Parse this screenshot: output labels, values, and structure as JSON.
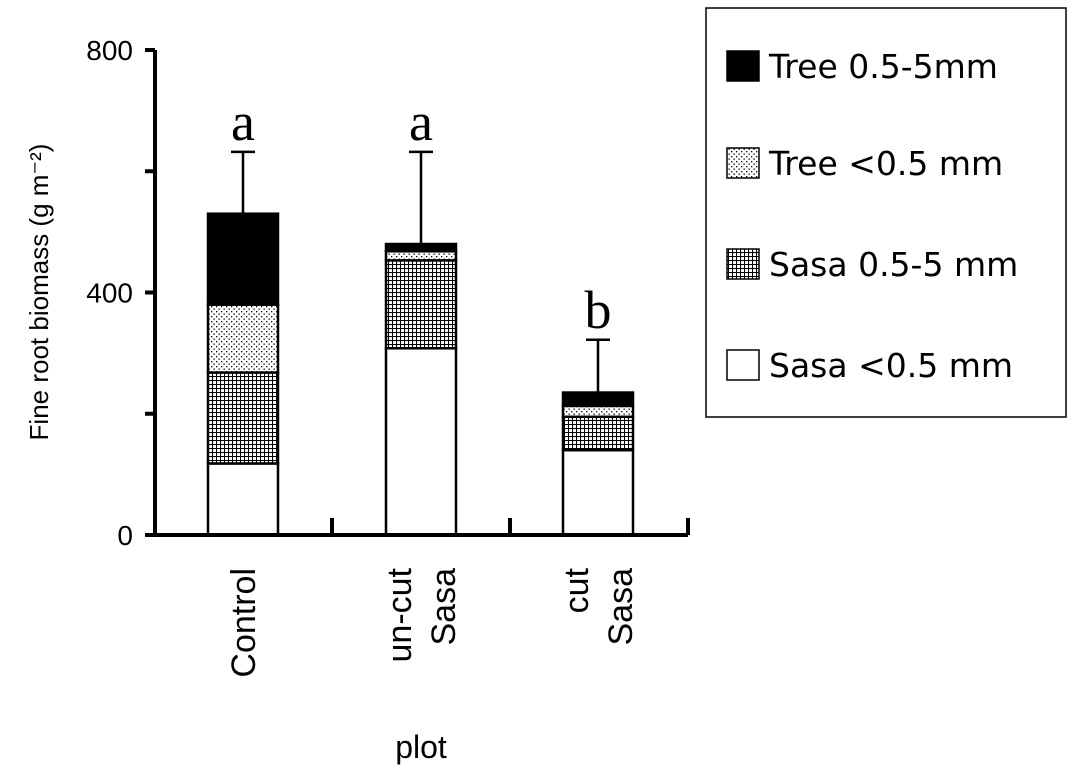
{
  "chart_data": {
    "type": "bar",
    "stacked": true,
    "title": "",
    "xlabel": "plot",
    "ylabel": "Fine root biomass (g m⁻²)",
    "ylim": [
      0,
      800
    ],
    "yticks": [
      0,
      400,
      800
    ],
    "categories": [
      {
        "lines": [
          "Control"
        ]
      },
      {
        "lines": [
          "un-cut",
          "Sasa"
        ]
      },
      {
        "lines": [
          "cut",
          "Sasa"
        ]
      }
    ],
    "series": [
      {
        "name": "Sasa <0.5 mm",
        "pattern": "white",
        "values": [
          118,
          308,
          140
        ]
      },
      {
        "name": "Sasa 0.5-5 mm",
        "pattern": "grid",
        "values": [
          150,
          145,
          55
        ]
      },
      {
        "name": "Tree <0.5 mm",
        "pattern": "dots",
        "values": [
          112,
          15,
          18
        ]
      },
      {
        "name": "Tree 0.5-5mm",
        "pattern": "black",
        "values": [
          150,
          12,
          22
        ]
      }
    ],
    "error_bars_upper": [
      632,
      632,
      322
    ],
    "significance_letters": [
      "a",
      "a",
      "b"
    ],
    "legend_order": [
      3,
      2,
      1,
      0
    ],
    "legend_position": "top-right"
  }
}
